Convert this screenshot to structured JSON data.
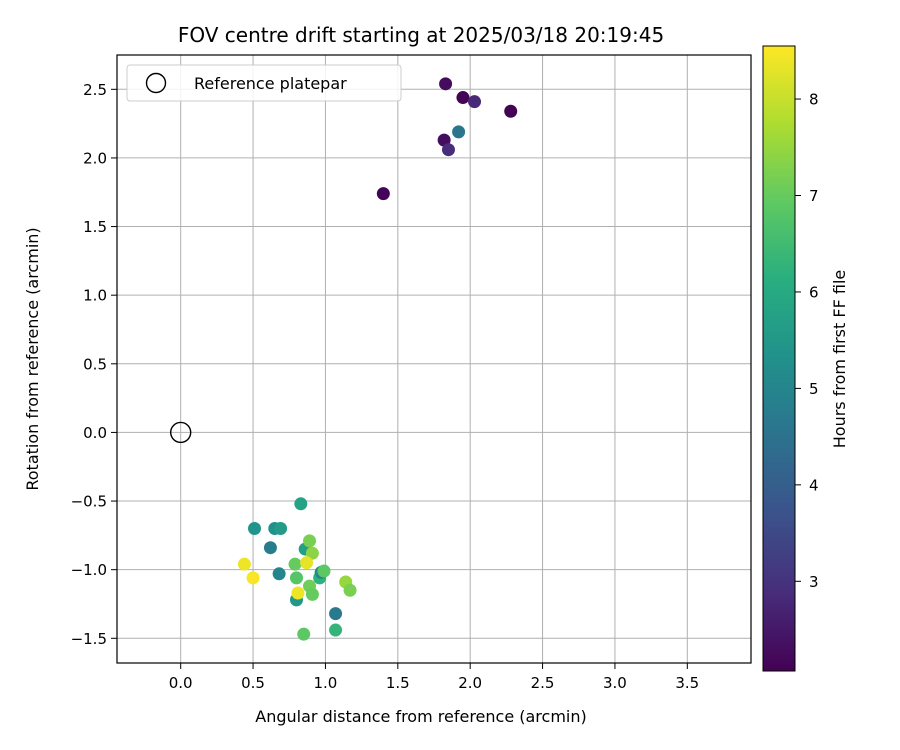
{
  "chart_data": {
    "type": "scatter",
    "title": "FOV centre drift starting at 2025/03/18 20:19:45",
    "xlabel": "Angular distance from reference (arcmin)",
    "ylabel": "Rotation from reference (arcmin)",
    "xlim": [
      -0.44,
      3.94
    ],
    "ylim": [
      -1.68,
      2.75
    ],
    "xticks": [
      0.0,
      0.5,
      1.0,
      1.5,
      2.0,
      2.5,
      3.0,
      3.5
    ],
    "xtick_labels": [
      "0.0",
      "0.5",
      "1.0",
      "1.5",
      "2.0",
      "2.5",
      "3.0",
      "3.5"
    ],
    "yticks": [
      -1.5,
      -1.0,
      -0.5,
      0.0,
      0.5,
      1.0,
      1.5,
      2.0,
      2.5
    ],
    "ytick_labels": [
      "−1.5",
      "−1.0",
      "−0.5",
      "0.0",
      "0.5",
      "1.0",
      "1.5",
      "2.0",
      "2.5"
    ],
    "grid": true,
    "legend": {
      "position": "top-left",
      "entries": [
        "Reference platepar"
      ]
    },
    "reference_point": {
      "x": 0.0,
      "y": 0.0
    },
    "colorbar": {
      "label": "Hours from first FF file",
      "colormap": "viridis",
      "range": [
        2.07,
        8.55
      ],
      "ticks": [
        3,
        4,
        5,
        6,
        7,
        8
      ],
      "tick_labels": [
        "3",
        "4",
        "5",
        "6",
        "7",
        "8"
      ]
    },
    "points": [
      {
        "x": 1.4,
        "y": 1.74,
        "c": 2.15
      },
      {
        "x": 1.82,
        "y": 2.13,
        "c": 2.3
      },
      {
        "x": 1.85,
        "y": 2.06,
        "c": 2.9
      },
      {
        "x": 1.83,
        "y": 2.54,
        "c": 2.25
      },
      {
        "x": 1.95,
        "y": 2.44,
        "c": 2.1
      },
      {
        "x": 2.03,
        "y": 2.41,
        "c": 2.8
      },
      {
        "x": 2.28,
        "y": 2.34,
        "c": 2.12
      },
      {
        "x": 1.92,
        "y": 2.19,
        "c": 4.6
      },
      {
        "x": 0.51,
        "y": -0.7,
        "c": 5.4
      },
      {
        "x": 0.65,
        "y": -0.7,
        "c": 5.3
      },
      {
        "x": 0.69,
        "y": -0.7,
        "c": 5.6
      },
      {
        "x": 0.62,
        "y": -0.84,
        "c": 4.8
      },
      {
        "x": 0.83,
        "y": -0.52,
        "c": 5.8
      },
      {
        "x": 0.68,
        "y": -1.03,
        "c": 5.0
      },
      {
        "x": 0.79,
        "y": -0.96,
        "c": 7.0
      },
      {
        "x": 0.86,
        "y": -0.85,
        "c": 5.7
      },
      {
        "x": 0.89,
        "y": -0.79,
        "c": 7.2
      },
      {
        "x": 0.91,
        "y": -0.88,
        "c": 7.4
      },
      {
        "x": 0.87,
        "y": -0.95,
        "c": 8.3
      },
      {
        "x": 0.44,
        "y": -0.96,
        "c": 8.4
      },
      {
        "x": 0.5,
        "y": -1.06,
        "c": 8.5
      },
      {
        "x": 0.8,
        "y": -1.06,
        "c": 6.8
      },
      {
        "x": 0.96,
        "y": -1.06,
        "c": 6.2
      },
      {
        "x": 0.97,
        "y": -1.02,
        "c": 5.1
      },
      {
        "x": 0.99,
        "y": -1.01,
        "c": 6.9
      },
      {
        "x": 0.89,
        "y": -1.12,
        "c": 7.1
      },
      {
        "x": 0.91,
        "y": -1.18,
        "c": 7.0
      },
      {
        "x": 0.8,
        "y": -1.22,
        "c": 5.5
      },
      {
        "x": 0.81,
        "y": -1.17,
        "c": 8.4
      },
      {
        "x": 1.14,
        "y": -1.09,
        "c": 7.5
      },
      {
        "x": 1.17,
        "y": -1.15,
        "c": 7.2
      },
      {
        "x": 1.07,
        "y": -1.32,
        "c": 4.7
      },
      {
        "x": 0.85,
        "y": -1.47,
        "c": 6.9
      },
      {
        "x": 1.07,
        "y": -1.44,
        "c": 6.3
      }
    ]
  }
}
